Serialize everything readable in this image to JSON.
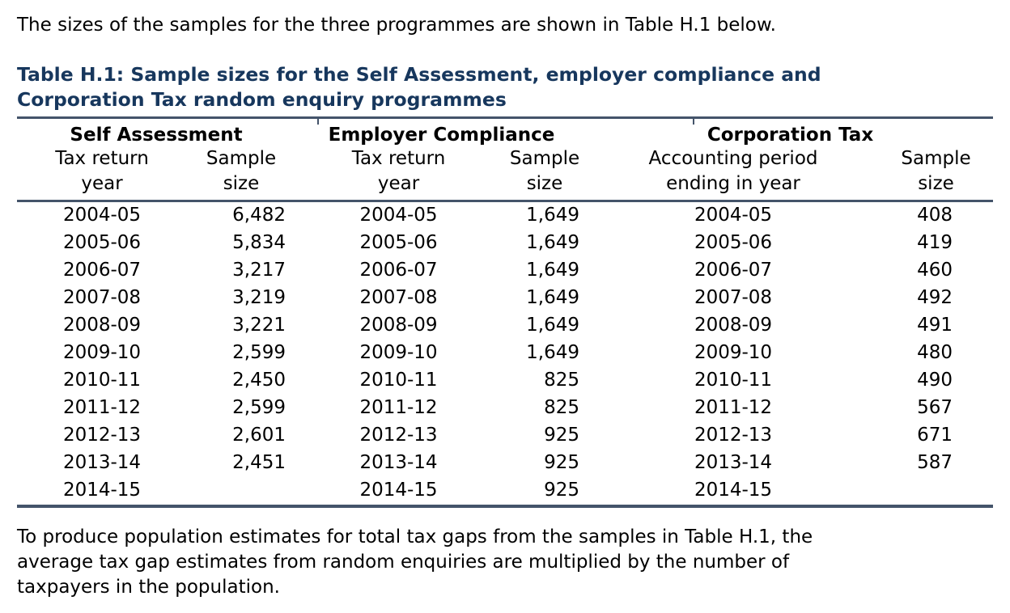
{
  "colors": {
    "heading": "#17375D",
    "rule": "#44546A",
    "body_text": "#000000",
    "background": "#FFFFFF"
  },
  "page": {
    "intro": "The sizes of the samples for the three programmes are shown in Table H.1 below.",
    "closing_lines": [
      "To produce population estimates for total tax gaps from the samples in Table H.1, the",
      "average tax gap estimates from random enquiries are multiplied by the number of",
      "taxpayers in the population."
    ]
  },
  "table": {
    "title_lines": [
      "Table H.1: Sample sizes for the Self Assessment, employer compliance and",
      "Corporation Tax random enquiry programmes"
    ],
    "group_headers": [
      "Self Assessment",
      "Employer Compliance",
      "Corporation Tax"
    ],
    "column_headers": [
      {
        "line1": "Tax return",
        "line2": "year"
      },
      {
        "line1": "Sample",
        "line2": "size"
      },
      {
        "line1": "Tax return",
        "line2": "year"
      },
      {
        "line1": "Sample",
        "line2": "size"
      },
      {
        "line1": "Accounting period",
        "line2": "ending in year"
      },
      {
        "line1": "Sample",
        "line2": "size"
      }
    ],
    "rows": [
      [
        "2004-05",
        "6,482",
        "2004-05",
        "1,649",
        "2004-05",
        "408"
      ],
      [
        "2005-06",
        "5,834",
        "2005-06",
        "1,649",
        "2005-06",
        "419"
      ],
      [
        "2006-07",
        "3,217",
        "2006-07",
        "1,649",
        "2006-07",
        "460"
      ],
      [
        "2007-08",
        "3,219",
        "2007-08",
        "1,649",
        "2007-08",
        "492"
      ],
      [
        "2008-09",
        "3,221",
        "2008-09",
        "1,649",
        "2008-09",
        "491"
      ],
      [
        "2009-10",
        "2,599",
        "2009-10",
        "1,649",
        "2009-10",
        "480"
      ],
      [
        "2010-11",
        "2,450",
        "2010-11",
        "825",
        "2010-11",
        "490"
      ],
      [
        "2011-12",
        "2,599",
        "2011-12",
        "825",
        "2011-12",
        "567"
      ],
      [
        "2012-13",
        "2,601",
        "2012-13",
        "925",
        "2012-13",
        "671"
      ],
      [
        "2013-14",
        "2,451",
        "2013-14",
        "925",
        "2013-14",
        "587"
      ],
      [
        "2014-15",
        "",
        "2014-15",
        "925",
        "2014-15",
        ""
      ]
    ]
  }
}
